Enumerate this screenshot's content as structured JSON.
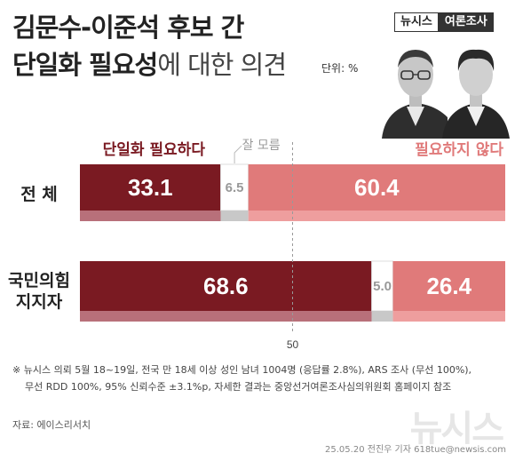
{
  "title_line1": "김문수-이준석 후보 간",
  "title_line2_bold": "단일화 필요성",
  "title_line2_normal": "에 대한 의견",
  "unit": "단위: %",
  "brand": {
    "left": "뉴시스",
    "right": "여론조사"
  },
  "footnote": [
    "※ 뉴시스 의뢰 5월 18~19일, 전국 만 18세 이상 성인 남녀 1004명 (응답률 2.8%), ARS 조사 (무선 100%),",
    "무선 RDD 100%, 95% 신뢰수준 ±3.1%p, 자세한 결과는 중앙선거여론조사심의위원회 홈페이지 참조"
  ],
  "source": "자료: 에이스리서치",
  "credit": "25.05.20 전진우 기자 618tue@newsis.com",
  "watermark": "뉴시스",
  "colors": {
    "need": "#7a1a22",
    "neutral": "#ffffff",
    "no_need": "#e07a7a",
    "no_need_light": "#ee9e9e",
    "need_light": "#b8707a",
    "neutral_light": "#c8c8c8"
  },
  "chart_data": {
    "type": "bar",
    "orientation": "horizontal",
    "stacked": true,
    "categories": [
      [
        "전 체"
      ],
      [
        "국민의힘",
        "지지자"
      ]
    ],
    "series": [
      {
        "name": "단일화 필요하다",
        "values": [
          33.1,
          68.6
        ]
      },
      {
        "name": "잘 모름",
        "values": [
          6.5,
          5.0
        ]
      },
      {
        "name": "필요하지 않다",
        "values": [
          60.4,
          26.4
        ]
      }
    ],
    "xlim": [
      0,
      100
    ],
    "reference_line": {
      "value": 50,
      "label": "50"
    }
  }
}
